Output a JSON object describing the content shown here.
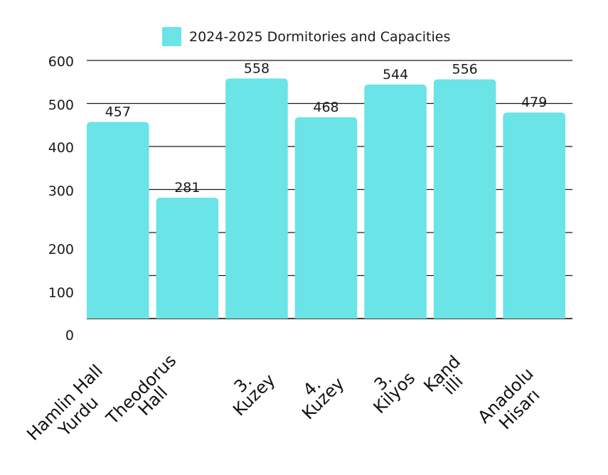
{
  "chart_data": {
    "type": "bar",
    "title": "",
    "xlabel": "",
    "ylabel": "",
    "legend": {
      "position": "top-center",
      "entries": [
        {
          "label": "2024-2025 Dormitories and Capacities",
          "color": "#6ae4e6"
        }
      ]
    },
    "categories": [
      [
        "Hamlin Hall",
        "Yurdu"
      ],
      [
        "Theodorus",
        "Hall"
      ],
      [
        "3.",
        "Kuzey"
      ],
      [
        "4.",
        "Kuzey"
      ],
      [
        "3.",
        "Kilyos"
      ],
      [
        "Kand",
        "illi"
      ],
      [
        "Anadolu",
        "Hisarı"
      ]
    ],
    "category_names": [
      "Hamlin Hall Yurdu",
      "Theodorus Hall",
      "3. Kuzey",
      "4. Kuzey",
      "3. Kilyos",
      "Kandilli",
      "Anadolu Hisarı"
    ],
    "series": [
      {
        "name": "2024-2025 Dormitories and Capacities",
        "color": "#6ae4e6",
        "values": [
          457,
          281,
          558,
          468,
          544,
          556,
          479
        ]
      }
    ],
    "data_labels": [
      "457",
      "281",
      "558",
      "468",
      "544",
      "556",
      "479"
    ],
    "yticks": [
      0,
      100,
      200,
      300,
      400,
      500,
      600
    ],
    "ytick_labels": [
      "0",
      "100",
      "200",
      "300",
      "400",
      "500",
      "600"
    ],
    "ylim": [
      0,
      600
    ],
    "grid": true,
    "gridline_color": "#1a1a1a"
  }
}
